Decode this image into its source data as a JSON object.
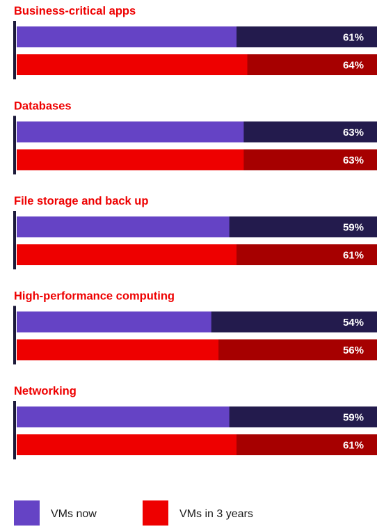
{
  "chart_data": {
    "type": "bar",
    "orientation": "horizontal",
    "categories": [
      "Business-critical apps",
      "Databases",
      "File storage and back up",
      "High-performance computing",
      "Networking"
    ],
    "series": [
      {
        "name": "VMs now",
        "values": [
          61,
          63,
          59,
          54,
          59
        ],
        "labels": [
          "61%",
          "63%",
          "59%",
          "54%",
          "59%"
        ]
      },
      {
        "name": "VMs in 3 years",
        "values": [
          64,
          63,
          61,
          56,
          61
        ],
        "labels": [
          "64%",
          "63%",
          "61%",
          "56%",
          "61%"
        ]
      }
    ],
    "unit": "%",
    "xlim": [
      0,
      100
    ],
    "legend_position": "bottom",
    "colors": {
      "title": "#ee0000",
      "axis": "#1c1a3a",
      "now_fill": "#6543c5",
      "now_track": "#231b4d",
      "future_fill": "#ee0000",
      "future_track": "#a60000"
    }
  }
}
